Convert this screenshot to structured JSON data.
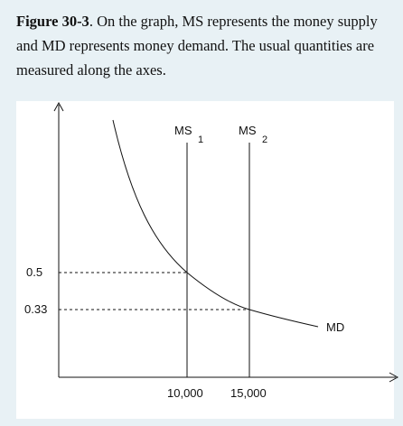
{
  "caption": {
    "figure_label": "Figure 30-3",
    "text": ". On the graph, MS represents the money supply and MD represents money demand. The usual quantities are measured along the axes."
  },
  "diagram": {
    "supply_curves": [
      {
        "name": "MS",
        "subscript": "1",
        "quantity": 10000
      },
      {
        "name": "MS",
        "subscript": "2",
        "quantity": 15000
      }
    ],
    "demand_curve": {
      "name": "MD"
    },
    "y_ticks": [
      {
        "label": "0.5",
        "value": 0.5
      },
      {
        "label": "0.33",
        "value": 0.33
      }
    ],
    "x_ticks": [
      {
        "label": "10,000",
        "value": 10000
      },
      {
        "label": "15,000",
        "value": 15000
      }
    ],
    "colors": {
      "background": "#e8f1f5",
      "panel": "#ffffff",
      "ink": "#111111"
    }
  }
}
